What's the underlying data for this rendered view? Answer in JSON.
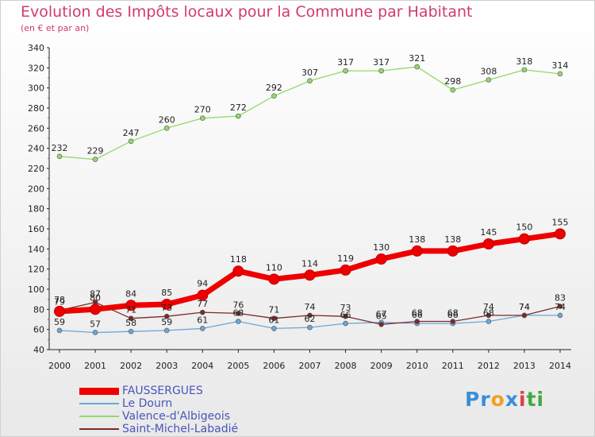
{
  "title": "Evolution des Impôts locaux pour la Commune par Habitant",
  "subtitle": "(en € et par an)",
  "logo": {
    "text": "Proxiti",
    "parts": [
      "Pr",
      "o",
      "x",
      "i",
      "ti"
    ]
  },
  "chart_data": {
    "type": "line",
    "title": "Evolution des Impôts locaux pour la Commune par Habitant",
    "subtitle": "(en € et par an)",
    "xlabel": "",
    "ylabel": "",
    "x": [
      "2000",
      "2001",
      "2002",
      "2003",
      "2004",
      "2005",
      "2006",
      "2007",
      "2008",
      "2009",
      "2010",
      "2011",
      "2012",
      "2013",
      "2014"
    ],
    "ylim": [
      40,
      340
    ],
    "yticks": [
      40,
      60,
      80,
      100,
      120,
      140,
      160,
      180,
      200,
      220,
      240,
      260,
      280,
      300,
      320,
      340
    ],
    "grid": false,
    "legend_position": "bottom-left",
    "series": [
      {
        "name": "FAUSSERGUES",
        "color": "#ee0000",
        "emphasis": true,
        "values": [
          78,
          80,
          84,
          85,
          94,
          118,
          110,
          114,
          119,
          130,
          138,
          138,
          145,
          150,
          155
        ]
      },
      {
        "name": "Le Dourn",
        "color": "#6aa6d8",
        "emphasis": false,
        "values": [
          59,
          57,
          58,
          59,
          61,
          68,
          61,
          62,
          66,
          67,
          66,
          66,
          68,
          74,
          74
        ]
      },
      {
        "name": "Valence-d'Albigeois",
        "color": "#93d86a",
        "emphasis": false,
        "values": [
          232,
          229,
          247,
          260,
          270,
          272,
          292,
          307,
          317,
          317,
          321,
          298,
          308,
          318,
          314
        ]
      },
      {
        "name": "Saint-Michel-Labadié",
        "color": "#7a2a2a",
        "emphasis": false,
        "values": [
          79,
          87,
          71,
          73,
          77,
          76,
          71,
          74,
          73,
          65,
          68,
          68,
          74,
          74,
          83
        ]
      }
    ]
  }
}
